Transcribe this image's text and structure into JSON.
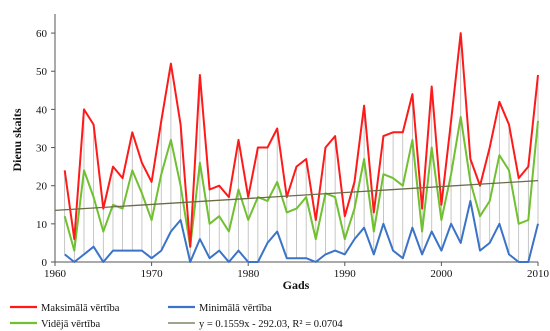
{
  "chart_data": {
    "type": "line",
    "xlabel": "Gads",
    "ylabel": "Dienu skaits",
    "xlim": [
      1960,
      2010
    ],
    "ylim": [
      0,
      65
    ],
    "xticks": [
      1960,
      1970,
      1980,
      1990,
      2000,
      2010
    ],
    "yticks": [
      0,
      10,
      20,
      30,
      40,
      50,
      60
    ],
    "grid": false,
    "legend_position": "bottom",
    "x": [
      1961,
      1962,
      1963,
      1964,
      1965,
      1966,
      1967,
      1968,
      1969,
      1970,
      1971,
      1972,
      1973,
      1974,
      1975,
      1976,
      1977,
      1978,
      1979,
      1980,
      1981,
      1982,
      1983,
      1984,
      1985,
      1986,
      1987,
      1988,
      1989,
      1990,
      1991,
      1992,
      1993,
      1994,
      1995,
      1996,
      1997,
      1998,
      1999,
      2000,
      2001,
      2002,
      2003,
      2004,
      2005,
      2006,
      2007,
      2008,
      2009,
      2010
    ],
    "series": [
      {
        "name": "Maksimālā vērtība",
        "color": "#ff1a1a",
        "values": [
          24,
          6,
          40,
          36,
          14,
          25,
          22,
          34,
          26,
          21,
          37,
          52,
          36,
          4,
          49,
          19,
          20,
          17,
          32,
          17,
          30,
          30,
          35,
          17,
          25,
          27,
          11,
          30,
          33,
          12,
          21,
          41,
          13,
          33,
          34,
          34,
          44,
          14,
          46,
          15,
          37,
          60,
          27,
          20,
          30,
          42,
          36,
          22,
          25,
          49
        ]
      },
      {
        "name": "Vidējā vērtība",
        "color": "#70c030",
        "values": [
          12,
          3,
          24,
          17,
          8,
          15,
          14,
          24,
          18,
          11,
          23,
          32,
          20,
          4,
          26,
          10,
          12,
          8,
          19,
          11,
          17,
          16,
          21,
          13,
          14,
          17,
          6,
          18,
          17,
          6,
          14,
          27,
          8,
          23,
          22,
          20,
          32,
          8,
          30,
          11,
          23,
          38,
          21,
          12,
          16,
          28,
          24,
          10,
          11,
          37
        ]
      },
      {
        "name": "Minimālā vērtība",
        "color": "#3a73c8",
        "values": [
          2,
          0,
          2,
          4,
          0,
          3,
          3,
          3,
          3,
          1,
          3,
          8,
          11,
          0,
          6,
          1,
          3,
          0,
          3,
          0,
          0,
          5,
          8,
          1,
          1,
          1,
          0,
          2,
          3,
          2,
          6,
          9,
          2,
          10,
          3,
          1,
          9,
          2,
          8,
          3,
          10,
          5,
          16,
          3,
          5,
          10,
          2,
          0,
          0,
          10
        ]
      }
    ],
    "trendline": {
      "label": "y = 0.1559x - 292.03, R² = 0.0704",
      "slope": 0.1559,
      "intercept": -292.03,
      "color": "#6b6b45"
    }
  }
}
